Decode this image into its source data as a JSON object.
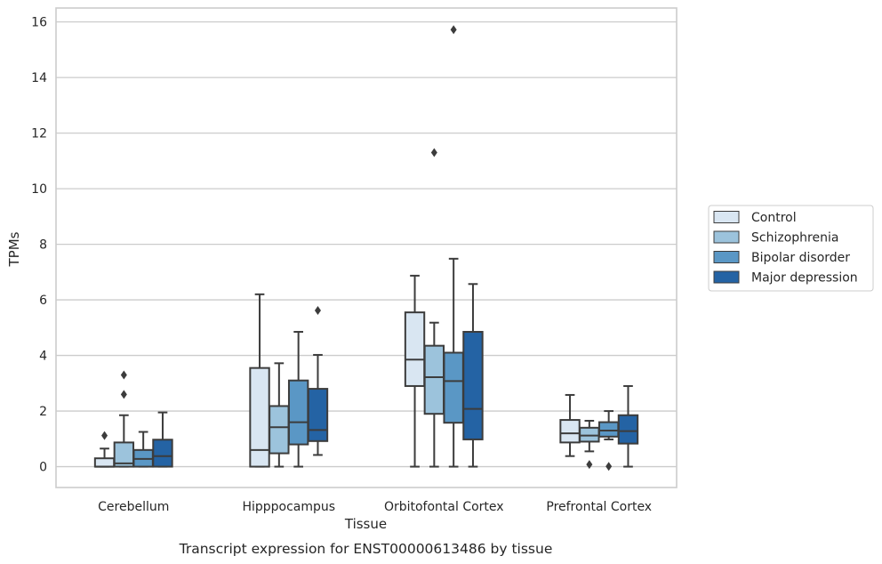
{
  "chart_data": {
    "type": "box",
    "caption": "Transcript expression for ENST00000613486 by tissue",
    "xlabel": "Tissue",
    "ylabel": "TPMs",
    "ylim": [
      -0.75,
      16.5
    ],
    "yticks": [
      0,
      2,
      4,
      6,
      8,
      10,
      12,
      14,
      16
    ],
    "grid": "horizontal",
    "legend_position": "right",
    "categories": [
      "Cerebellum",
      "Hipppocampus",
      "Orbitofontal Cortex",
      "Prefrontal Cortex"
    ],
    "series": [
      {
        "name": "Control",
        "color": "#d9e6f2",
        "boxes": [
          {
            "whislo": 0,
            "q1": 0,
            "med": 0,
            "q3": 0.3,
            "whishi": 0.65,
            "fliers": [
              1.12
            ]
          },
          {
            "whislo": 0,
            "q1": 0,
            "med": 0.6,
            "q3": 3.55,
            "whishi": 6.2,
            "fliers": []
          },
          {
            "whislo": 0,
            "q1": 2.9,
            "med": 3.85,
            "q3": 5.55,
            "whishi": 6.87,
            "fliers": []
          },
          {
            "whislo": 0.38,
            "q1": 0.87,
            "med": 1.2,
            "q3": 1.68,
            "whishi": 2.58,
            "fliers": []
          }
        ]
      },
      {
        "name": "Schizophrenia",
        "color": "#9cc3dc",
        "boxes": [
          {
            "whislo": 0,
            "q1": 0,
            "med": 0.12,
            "q3": 0.87,
            "whishi": 1.85,
            "fliers": [
              2.6,
              3.3
            ]
          },
          {
            "whislo": 0,
            "q1": 0.48,
            "med": 1.42,
            "q3": 2.18,
            "whishi": 3.72,
            "fliers": []
          },
          {
            "whislo": 0,
            "q1": 1.9,
            "med": 3.22,
            "q3": 4.35,
            "whishi": 5.18,
            "fliers": [
              11.3
            ]
          },
          {
            "whislo": 0.55,
            "q1": 0.9,
            "med": 1.12,
            "q3": 1.4,
            "whishi": 1.65,
            "fliers": [
              0.08
            ]
          }
        ]
      },
      {
        "name": "Bipolar disorder",
        "color": "#5a97c5",
        "boxes": [
          {
            "whislo": 0,
            "q1": 0,
            "med": 0.28,
            "q3": 0.6,
            "whishi": 1.25,
            "fliers": []
          },
          {
            "whislo": 0,
            "q1": 0.8,
            "med": 1.6,
            "q3": 3.1,
            "whishi": 4.85,
            "fliers": []
          },
          {
            "whislo": 0,
            "q1": 1.58,
            "med": 3.08,
            "q3": 4.1,
            "whishi": 7.48,
            "fliers": [
              15.72
            ]
          },
          {
            "whislo": 0.98,
            "q1": 1.08,
            "med": 1.3,
            "q3": 1.6,
            "whishi": 2.0,
            "fliers": [
              0.01
            ]
          }
        ]
      },
      {
        "name": "Major depression",
        "color": "#2463a4",
        "boxes": [
          {
            "whislo": 0,
            "q1": 0,
            "med": 0.38,
            "q3": 0.97,
            "whishi": 1.95,
            "fliers": []
          },
          {
            "whislo": 0.42,
            "q1": 0.92,
            "med": 1.32,
            "q3": 2.8,
            "whishi": 4.02,
            "fliers": [
              5.62
            ]
          },
          {
            "whislo": 0,
            "q1": 0.98,
            "med": 2.08,
            "q3": 4.85,
            "whishi": 6.57,
            "fliers": []
          },
          {
            "whislo": 0,
            "q1": 0.83,
            "med": 1.28,
            "q3": 1.85,
            "whishi": 2.9,
            "fliers": []
          }
        ]
      }
    ]
  }
}
